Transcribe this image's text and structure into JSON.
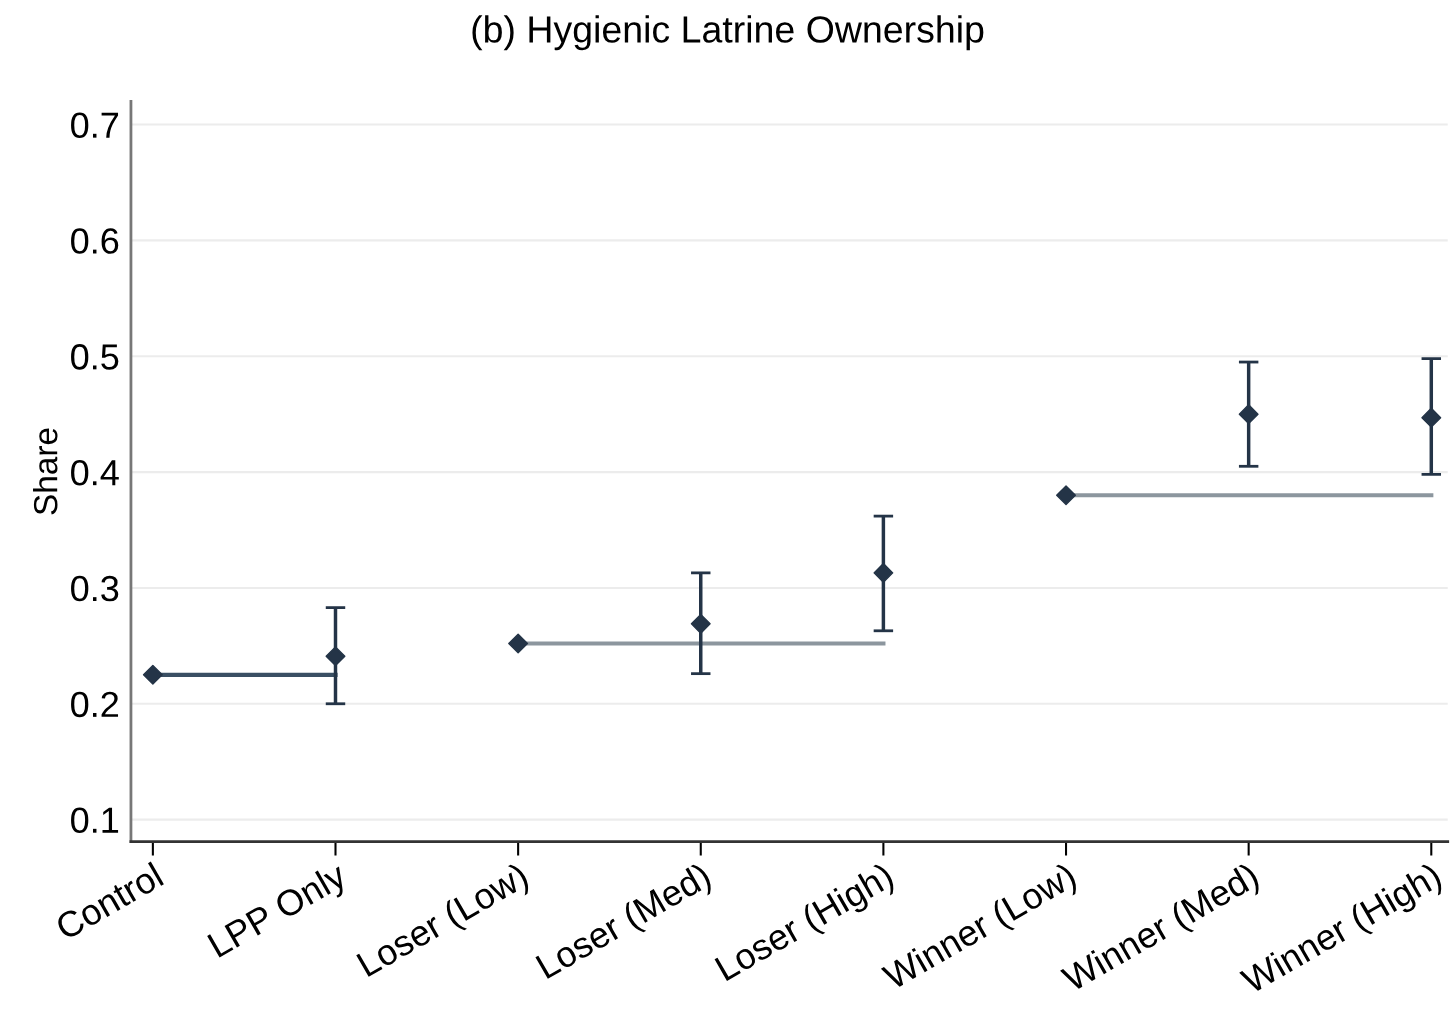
{
  "chart_data": {
    "type": "scatter",
    "title": "(b) Hygienic Latrine Ownership",
    "ylabel": "Share",
    "categories": [
      "Control",
      "LPP Only",
      "Loser (Low)",
      "Loser (Med)",
      "Loser (High)",
      "Winner (Low)",
      "Winner (Med)",
      "Winner (High)"
    ],
    "series": [
      {
        "type": "line",
        "color": "#3a4f63",
        "marker": "none",
        "values": [
          0.225,
          0.225,
          null,
          null,
          null,
          null,
          null,
          null
        ]
      },
      {
        "type": "line",
        "color": "#8c969e",
        "marker": "none",
        "values": [
          null,
          null,
          0.252,
          0.252,
          0.252,
          null,
          null,
          null
        ]
      },
      {
        "type": "line",
        "color": "#8c969e",
        "marker": "none",
        "values": [
          null,
          null,
          null,
          null,
          null,
          0.38,
          0.38,
          0.38
        ]
      },
      {
        "color": "#243447",
        "marker": "diamond",
        "values": [
          0.225,
          0.241,
          0.252,
          0.269,
          0.313,
          0.38,
          0.45,
          0.447
        ],
        "errors": [
          null,
          [
            0.2,
            0.283
          ],
          null,
          [
            0.226,
            0.313
          ],
          [
            0.263,
            0.362
          ],
          null,
          [
            0.405,
            0.495
          ],
          [
            0.398,
            0.498
          ]
        ]
      }
    ],
    "ylim": [
      0.081,
      0.72
    ],
    "yticks": [
      0.1,
      0.2,
      0.3,
      0.4,
      0.5,
      0.6,
      0.7
    ],
    "grid": "y",
    "legend": false
  }
}
